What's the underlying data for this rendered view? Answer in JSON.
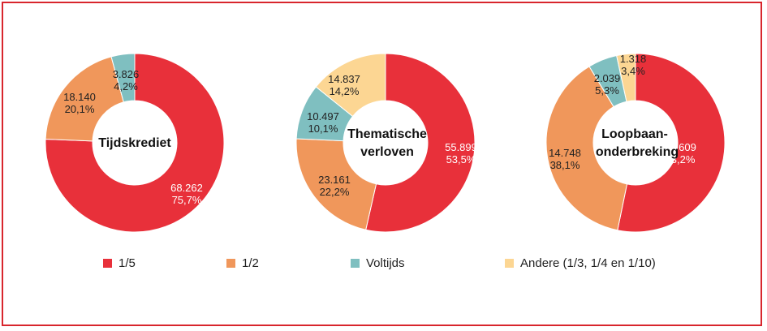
{
  "legend": [
    {
      "label": "1/5",
      "color": "#e8303a"
    },
    {
      "label": "1/2",
      "color": "#f0975b"
    },
    {
      "label": "Voltijds",
      "color": "#7fbfc0"
    },
    {
      "label": "Andere (1/3, 1/4 en 1/10)",
      "color": "#fcd693"
    }
  ],
  "chart_data": [
    {
      "type": "pie",
      "title": "Tijdskrediet",
      "categories": [
        "1/5",
        "1/2",
        "Voltijds"
      ],
      "values": [
        68262,
        18140,
        3826
      ],
      "value_labels": [
        "68.262",
        "18.140",
        "3.826"
      ],
      "percent_labels": [
        "75,7%",
        "20,1%",
        "4,2%"
      ]
    },
    {
      "type": "pie",
      "title": "Thematische verloven",
      "categories": [
        "1/5",
        "1/2",
        "Voltijds",
        "Andere (1/3, 1/4 en 1/10)"
      ],
      "values": [
        55899,
        23161,
        10497,
        14837
      ],
      "value_labels": [
        "55.899",
        "23.161",
        "10.497",
        "14.837"
      ],
      "percent_labels": [
        "53,5%",
        "22,2%",
        "10,1%",
        "14,2%"
      ]
    },
    {
      "type": "pie",
      "title": "Loopbaan-onderbreking",
      "categories": [
        "1/5",
        "1/2",
        "Voltijds",
        "Andere (1/3, 1/4 en 1/10)"
      ],
      "values": [
        20609,
        14748,
        2039,
        1318
      ],
      "value_labels": [
        "20.609",
        "14.748",
        "2.039",
        "1.318"
      ],
      "percent_labels": [
        "53,2%",
        "38,1%",
        "5,3%",
        "3,4%"
      ]
    }
  ]
}
